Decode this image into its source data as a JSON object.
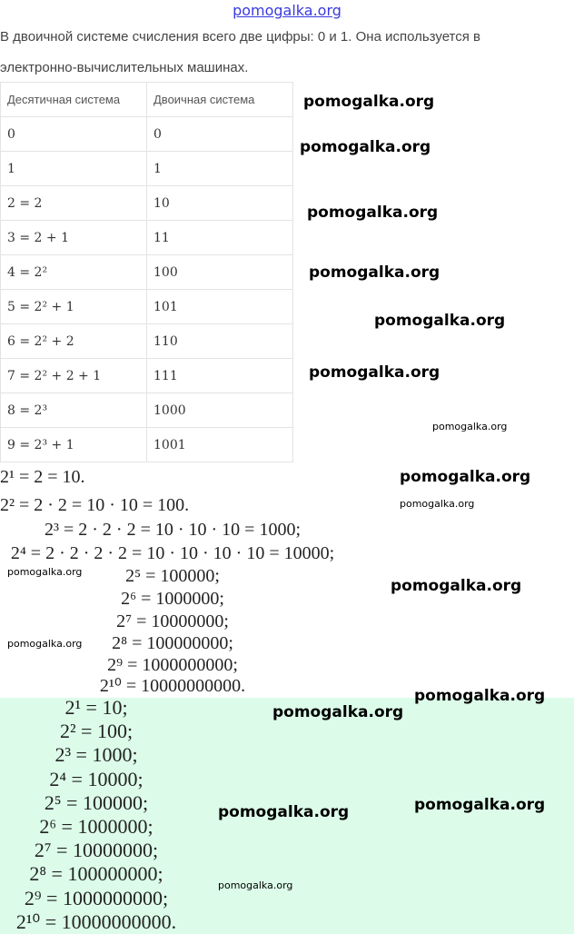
{
  "header": "pomogalka.org",
  "intro": [
    "В двоичной системе счисления всего две цифры: 0 и 1. Она используется в",
    "электронно-вычислительных машинах."
  ],
  "table": {
    "headers": [
      "Десятичная система",
      "Двоичная система"
    ],
    "rows": [
      [
        "0",
        "0"
      ],
      [
        "1",
        "1"
      ],
      [
        "2 = 2",
        "10"
      ],
      [
        "3 = 2 + 1",
        "11"
      ],
      [
        "4 = 2²",
        "100"
      ],
      [
        "5 = 2² + 1",
        "101"
      ],
      [
        "6 = 2² + 2",
        "110"
      ],
      [
        "7 = 2² + 2 + 1",
        "111"
      ],
      [
        "8 = 2³",
        "1000"
      ],
      [
        "9 = 2³ + 1",
        "1001"
      ]
    ]
  },
  "block1": [
    "2¹ = 2 = 10.",
    "2² = 2 · 2 = 10 · 10 = 100.",
    "2³ = 2 · 2 · 2 = 10 · 10 · 10 = 1000;",
    "2⁴ = 2 · 2 · 2 · 2 = 10 · 10 · 10 · 10 = 10000;",
    "2⁵ = 100000;",
    "2⁶ = 1000000;",
    "2⁷ = 10000000;",
    "2⁸ = 100000000;",
    "2⁹ = 1000000000;",
    "2¹⁰ = 10000000000."
  ],
  "block2": [
    "2¹ = 10;",
    "2² = 100;",
    "2³ = 1000;",
    "2⁴ = 10000;",
    "2⁵ = 100000;",
    "2⁶ = 1000000;",
    "2⁷ = 10000000;",
    "2⁸ = 100000000;",
    "2⁹ = 1000000000;",
    "2¹⁰ = 10000000000."
  ],
  "highlight_color": "#dcfce9",
  "watermark": "pomogalka.org"
}
